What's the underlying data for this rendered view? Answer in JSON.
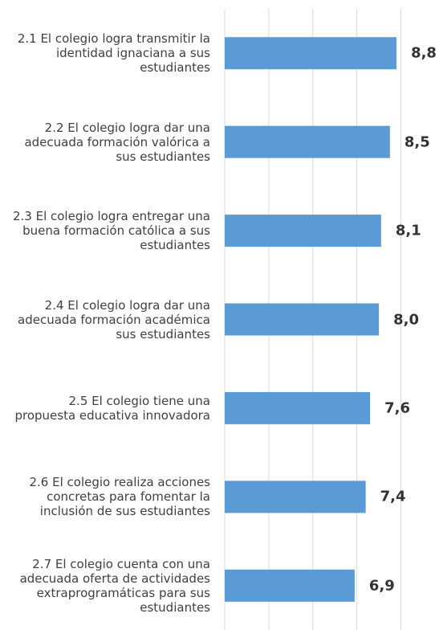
{
  "chart_data": {
    "type": "bar",
    "orientation": "horizontal",
    "categories": [
      "2.1 El colegio logra transmitir la identidad ignaciana a sus estudiantes",
      "2.2 El colegio logra dar una adecuada formación valórica a sus estudiantes",
      "2.3 El colegio logra entregar una buena formación católica a sus estudiantes",
      "2.4 El colegio logra dar una adecuada formación académica sus estudiantes",
      "2.5 El colegio tiene una propuesta educativa innovadora",
      "2.6 El colegio realiza acciones concretas para fomentar la inclusión de sus estudiantes",
      "2.7 El colegio cuenta con una adecuada oferta de actividades extraprogramáticas para sus estudiantes"
    ],
    "values": [
      8.8,
      8.5,
      8.1,
      8.0,
      7.6,
      7.4,
      6.9
    ],
    "value_labels": [
      "8,8",
      "8,5",
      "8,1",
      "8,0",
      "7,6",
      "7,4",
      "6,9"
    ],
    "color": "#5b9bd5",
    "xlim": [
      1,
      10
    ],
    "xticks": [
      1,
      3,
      5,
      7,
      9
    ],
    "grid": true
  }
}
